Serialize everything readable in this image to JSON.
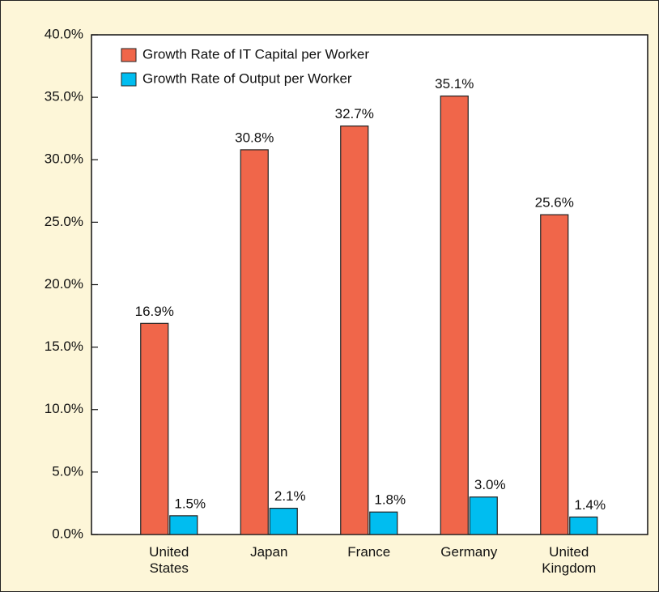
{
  "chart_data": {
    "type": "bar",
    "categories": [
      "United States",
      "Japan",
      "France",
      "Germany",
      "United Kingdom"
    ],
    "series": [
      {
        "name": "Growth Rate of IT Capital per Worker",
        "color": "#f0664a",
        "values": [
          16.9,
          30.8,
          32.7,
          35.1,
          25.6
        ],
        "value_labels": [
          "16.9%",
          "30.8%",
          "32.7%",
          "35.1%",
          "25.6%"
        ]
      },
      {
        "name": "Growth Rate of Output per Worker",
        "color": "#00bdf0",
        "values": [
          1.5,
          2.1,
          1.8,
          3.0,
          1.4
        ],
        "value_labels": [
          "1.5%",
          "2.1%",
          "1.8%",
          "3.0%",
          "1.4%"
        ]
      }
    ],
    "ylim": [
      0,
      40
    ],
    "yticks": [
      {
        "value": 0,
        "label": "0.0%"
      },
      {
        "value": 5,
        "label": "5.0%"
      },
      {
        "value": 10,
        "label": "10.0%"
      },
      {
        "value": 15,
        "label": "15.0%"
      },
      {
        "value": 20,
        "label": "20.0%"
      },
      {
        "value": 25,
        "label": "25.0%"
      },
      {
        "value": 30,
        "label": "30.0%"
      },
      {
        "value": 35,
        "label": "35.0%"
      },
      {
        "value": 40,
        "label": "40.0%"
      }
    ],
    "legend": "upper left"
  }
}
